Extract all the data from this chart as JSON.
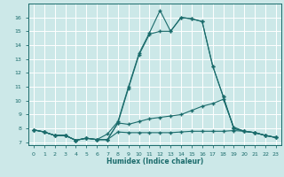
{
  "xlabel": "Humidex (Indice chaleur)",
  "bg_color": "#cce8e8",
  "grid_color": "#ffffff",
  "line_color": "#1a6b6b",
  "xlim": [
    -0.5,
    23.5
  ],
  "ylim": [
    6.8,
    17.0
  ],
  "xticks": [
    0,
    1,
    2,
    3,
    4,
    5,
    6,
    7,
    8,
    9,
    10,
    11,
    12,
    13,
    14,
    15,
    16,
    17,
    18,
    19,
    20,
    21,
    22,
    23
  ],
  "yticks": [
    7,
    8,
    9,
    10,
    11,
    12,
    13,
    14,
    15,
    16
  ],
  "line1_x": [
    0,
    1,
    2,
    3,
    4,
    5,
    6,
    7,
    8,
    9,
    10,
    11,
    12,
    13,
    14,
    15,
    16,
    17,
    18,
    19,
    20,
    21,
    22,
    23
  ],
  "line1_y": [
    7.9,
    7.75,
    7.5,
    7.5,
    7.15,
    7.3,
    7.2,
    7.2,
    7.75,
    7.7,
    7.7,
    7.7,
    7.7,
    7.7,
    7.75,
    7.8,
    7.8,
    7.8,
    7.8,
    7.85,
    7.8,
    7.7,
    7.5,
    7.35
  ],
  "line2_x": [
    0,
    1,
    2,
    3,
    4,
    5,
    6,
    7,
    8,
    9,
    10,
    11,
    12,
    13,
    14,
    15,
    16,
    17,
    18,
    19,
    20,
    21,
    22,
    23
  ],
  "line2_y": [
    7.9,
    7.75,
    7.5,
    7.5,
    7.15,
    7.3,
    7.2,
    7.2,
    8.4,
    8.3,
    8.5,
    8.7,
    8.8,
    8.9,
    9.0,
    9.3,
    9.6,
    9.8,
    10.1,
    8.1,
    7.8,
    7.7,
    7.5,
    7.35
  ],
  "line3_x": [
    0,
    1,
    2,
    3,
    4,
    5,
    6,
    7,
    8,
    9,
    10,
    11,
    12,
    13,
    14,
    15,
    16,
    17,
    18,
    19,
    20,
    21,
    22,
    23
  ],
  "line3_y": [
    7.9,
    7.75,
    7.5,
    7.5,
    7.15,
    7.3,
    7.2,
    7.2,
    8.4,
    10.9,
    13.3,
    14.8,
    15.0,
    15.0,
    16.0,
    15.9,
    15.7,
    12.5,
    10.3,
    8.0,
    7.8,
    7.7,
    7.5,
    7.35
  ],
  "line4_x": [
    0,
    1,
    2,
    3,
    4,
    5,
    6,
    7,
    8,
    9,
    10,
    11,
    12,
    13,
    14,
    15,
    16,
    17,
    18,
    19,
    20,
    21,
    22,
    23
  ],
  "line4_y": [
    7.9,
    7.75,
    7.5,
    7.5,
    7.15,
    7.3,
    7.2,
    7.6,
    8.5,
    11.0,
    13.4,
    14.9,
    16.5,
    15.0,
    16.0,
    15.9,
    15.7,
    12.5,
    10.3,
    8.0,
    7.8,
    7.7,
    7.5,
    7.35
  ]
}
